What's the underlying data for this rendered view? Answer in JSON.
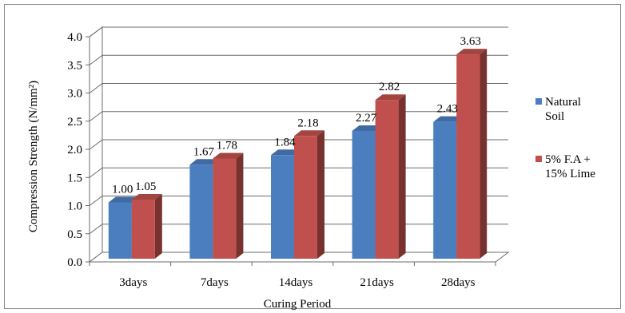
{
  "chart_data": {
    "type": "bar",
    "style": "3d-clustered-column",
    "categories": [
      "3days",
      "7days",
      "14days",
      "21days",
      "28days"
    ],
    "series": [
      {
        "name": "Natural Soil",
        "legend_lines": [
          "Natural",
          "Soil"
        ],
        "values": [
          1.0,
          1.67,
          1.84,
          2.27,
          2.43
        ],
        "labels": [
          "1.00",
          "1.67",
          "1.84",
          "2.27",
          "2.43"
        ],
        "color": "#4a7ebf"
      },
      {
        "name": "5% F.A + 15% Lime",
        "legend_lines": [
          "5% F.A +",
          "15% Lime"
        ],
        "values": [
          1.05,
          1.78,
          2.18,
          2.82,
          3.63
        ],
        "labels": [
          "1.05",
          "1.78",
          "2.18",
          "2.82",
          "3.63"
        ],
        "color": "#c0504d"
      }
    ],
    "title": "",
    "xlabel": "Curing Period",
    "ylabel": "Compression Strength (N/mm²)",
    "ylim": [
      0,
      4
    ],
    "yticks": [
      "0.0",
      "0.5",
      "1.0",
      "1.5",
      "2.0",
      "2.5",
      "3.0",
      "3.5",
      "4.0"
    ],
    "grid": true,
    "legend_position": "right"
  }
}
